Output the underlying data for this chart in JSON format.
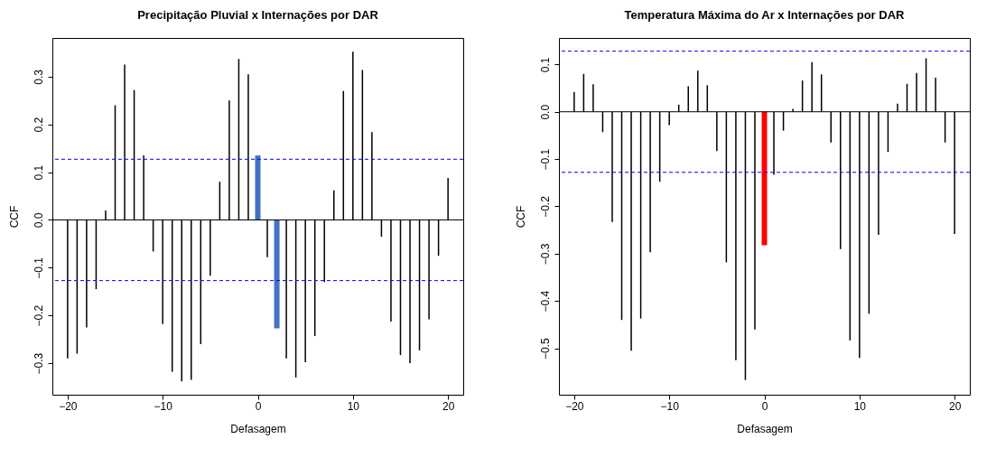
{
  "chart_data": [
    {
      "type": "bar",
      "title": "Precipitação Pluvial x Internações por DAR",
      "xlabel": "Defasagem",
      "ylabel": "CCF",
      "color": "#000000",
      "x": [
        -20,
        -19,
        -18,
        -17,
        -16,
        -15,
        -14,
        -13,
        -12,
        -11,
        -10,
        -9,
        -8,
        -7,
        -6,
        -5,
        -4,
        -3,
        -2,
        -1,
        0,
        1,
        2,
        3,
        4,
        5,
        6,
        7,
        8,
        9,
        10,
        11,
        12,
        13,
        14,
        15,
        16,
        17,
        18,
        19,
        20
      ],
      "values": [
        -0.29,
        -0.28,
        -0.225,
        -0.145,
        0.02,
        0.24,
        0.325,
        0.272,
        0.135,
        -0.066,
        -0.218,
        -0.318,
        -0.338,
        -0.335,
        -0.26,
        -0.117,
        0.08,
        0.25,
        0.337,
        0.305,
        0.135,
        -0.078,
        -0.227,
        -0.29,
        -0.33,
        -0.298,
        -0.243,
        -0.13,
        0.062,
        0.27,
        0.352,
        0.314,
        0.184,
        -0.035,
        -0.213,
        -0.283,
        -0.3,
        -0.273,
        -0.208,
        -0.075,
        0.088
      ],
      "colors": [
        "#000000",
        "#000000",
        "#000000",
        "#000000",
        "#000000",
        "#000000",
        "#000000",
        "#000000",
        "#000000",
        "#000000",
        "#000000",
        "#000000",
        "#000000",
        "#000000",
        "#000000",
        "#000000",
        "#000000",
        "#000000",
        "#000000",
        "#000000",
        "#4472c4",
        "#000000",
        "#4472c4",
        "#000000",
        "#000000",
        "#000000",
        "#000000",
        "#000000",
        "#000000",
        "#000000",
        "#000000",
        "#000000",
        "#000000",
        "#000000",
        "#000000",
        "#000000",
        "#000000",
        "#000000",
        "#000000",
        "#000000",
        "#000000"
      ],
      "xlim": [
        -21.6,
        21.6
      ],
      "xticks": [
        -20,
        -10,
        0,
        10,
        20
      ],
      "ylim": [
        -0.366,
        0.381
      ],
      "yticks": [
        -0.3,
        -0.2,
        -0.1,
        {
          "value": 0,
          "label": "0.0"
        },
        0.1,
        0.2,
        0.3
      ],
      "ref_lines": [
        {
          "axis": "y",
          "value": 0,
          "color": "#000000",
          "line_style": "solid"
        },
        {
          "axis": "y",
          "value": 0.127,
          "color": "#0000ff",
          "line_style": "dashed"
        },
        {
          "axis": "y",
          "value": -0.127,
          "color": "#0000ff",
          "line_style": "dashed"
        }
      ],
      "grid": false
    },
    {
      "type": "bar",
      "title": "Temperatura Máxima do Ar x Internações por DAR",
      "xlabel": "Defasagem",
      "ylabel": "CCF",
      "color": "#000000",
      "x": [
        -20,
        -19,
        -18,
        -17,
        -16,
        -15,
        -14,
        -13,
        -12,
        -11,
        -10,
        -9,
        -8,
        -7,
        -6,
        -5,
        -4,
        -3,
        -2,
        -1,
        0,
        1,
        2,
        3,
        4,
        5,
        6,
        7,
        8,
        9,
        10,
        11,
        12,
        13,
        14,
        15,
        16,
        17,
        18,
        19,
        20
      ],
      "values": [
        0.042,
        0.08,
        0.058,
        -0.043,
        -0.233,
        -0.44,
        -0.505,
        -0.437,
        -0.297,
        -0.148,
        -0.028,
        0.015,
        0.054,
        0.087,
        0.056,
        -0.083,
        -0.318,
        -0.525,
        -0.567,
        -0.46,
        -0.282,
        -0.133,
        -0.04,
        0.006,
        0.066,
        0.105,
        0.079,
        -0.065,
        -0.29,
        -0.483,
        -0.52,
        -0.427,
        -0.26,
        -0.085,
        0.017,
        0.059,
        0.082,
        0.113,
        0.072,
        -0.065,
        -0.258
      ],
      "colors": [
        "#000000",
        "#000000",
        "#000000",
        "#000000",
        "#000000",
        "#000000",
        "#000000",
        "#000000",
        "#000000",
        "#000000",
        "#000000",
        "#000000",
        "#000000",
        "#000000",
        "#000000",
        "#000000",
        "#000000",
        "#000000",
        "#000000",
        "#000000",
        "#ff0000",
        "#000000",
        "#000000",
        "#000000",
        "#000000",
        "#000000",
        "#000000",
        "#000000",
        "#000000",
        "#000000",
        "#000000",
        "#000000",
        "#000000",
        "#000000",
        "#000000",
        "#000000",
        "#000000",
        "#000000",
        "#000000",
        "#000000",
        "#000000"
      ],
      "xlim": [
        -21.6,
        21.6
      ],
      "xticks": [
        -20,
        -10,
        0,
        10,
        20
      ],
      "ylim": [
        -0.598,
        0.156
      ],
      "yticks": [
        -0.5,
        -0.4,
        -0.3,
        -0.2,
        -0.1,
        {
          "value": 0,
          "label": "0.0"
        },
        0.1
      ],
      "ref_lines": [
        {
          "axis": "y",
          "value": 0,
          "color": "#000000",
          "line_style": "solid"
        },
        {
          "axis": "y",
          "value": 0.128,
          "color": "#0000ff",
          "line_style": "dashed"
        },
        {
          "axis": "y",
          "value": -0.128,
          "color": "#0000ff",
          "line_style": "dashed"
        }
      ],
      "grid": false
    }
  ]
}
